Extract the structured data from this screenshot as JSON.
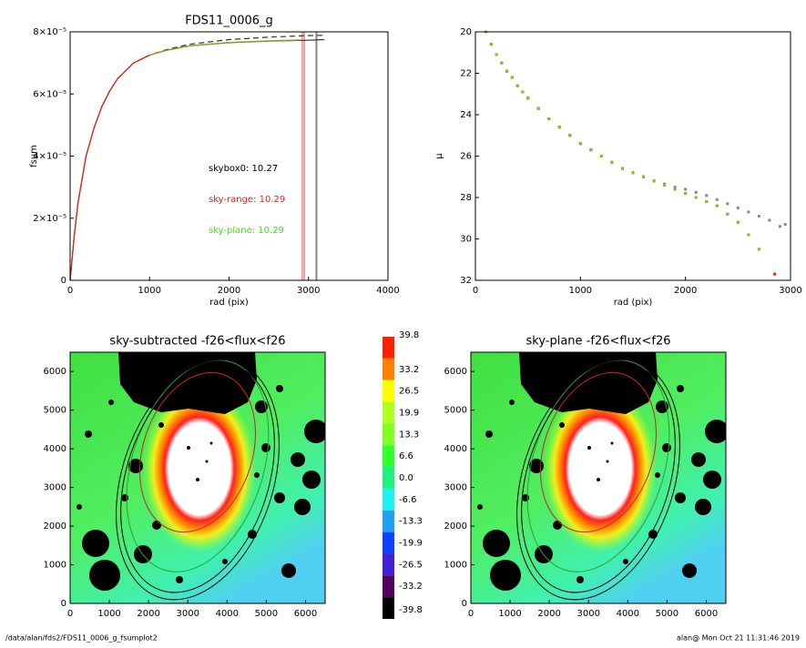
{
  "chart_data": [
    {
      "type": "line",
      "title": "FDS11_0006_g",
      "x_label": "rad (pix)",
      "y_label": "fsum",
      "xlim": [
        0,
        4000
      ],
      "xticks": [
        0,
        1000,
        2000,
        3000,
        4000
      ],
      "ylim": [
        0,
        8e-05
      ],
      "yticks": [
        0,
        {
          "value": 2e-05,
          "label": "2×10⁻⁵"
        },
        {
          "value": 4e-05,
          "label": "4×10⁻⁵"
        },
        {
          "value": 6e-05,
          "label": "6×10⁻⁵"
        },
        {
          "value": 8e-05,
          "label": "8×10⁻⁵"
        }
      ],
      "vlines": [
        {
          "value": 2920,
          "color": "#f0a0a0"
        },
        {
          "value": 2945,
          "color": "#f0a0a0"
        },
        {
          "value": 3100,
          "color": "#888888"
        }
      ],
      "series": [
        {
          "color": "#333333",
          "dash": false,
          "x": [
            0,
            50,
            100,
            200,
            300,
            400,
            500,
            600,
            800,
            1000,
            1200,
            1500,
            2000,
            2500,
            3000,
            3200
          ],
          "values": [
            0,
            1.4e-05,
            2.5e-05,
            4e-05,
            4.9e-05,
            5.6e-05,
            6.1e-05,
            6.5e-05,
            7e-05,
            7.25e-05,
            7.4e-05,
            7.55e-05,
            7.65e-05,
            7.7e-05,
            7.73e-05,
            7.75e-05
          ]
        },
        {
          "color": "#333333",
          "dash": true,
          "x": [
            0,
            50,
            100,
            200,
            300,
            400,
            500,
            600,
            800,
            1000,
            1200,
            1500,
            2000,
            2500,
            3000,
            3200
          ],
          "values": [
            0,
            1.4e-05,
            2.5e-05,
            4e-05,
            4.9e-05,
            5.6e-05,
            6.1e-05,
            6.5e-05,
            7e-05,
            7.25e-05,
            7.42e-05,
            7.6e-05,
            7.75e-05,
            7.83e-05,
            7.88e-05,
            7.89e-05
          ]
        },
        {
          "color": "#9aa020",
          "dash": false,
          "x": [
            0,
            50,
            100,
            200,
            300,
            400,
            500,
            600,
            800,
            1000,
            1200,
            1500,
            2000,
            2500,
            2900
          ],
          "values": [
            0,
            1.4e-05,
            2.5e-05,
            4e-05,
            4.9e-05,
            5.6e-05,
            6.1e-05,
            6.5e-05,
            7e-05,
            7.25e-05,
            7.4e-05,
            7.55e-05,
            7.66e-05,
            7.71e-05,
            7.74e-05
          ]
        },
        {
          "color": "#e02020",
          "dash": false,
          "x": [
            0,
            50,
            100,
            200,
            300,
            400,
            500,
            600,
            800,
            1000
          ],
          "values": [
            0,
            1.4e-05,
            2.5e-05,
            4e-05,
            4.9e-05,
            5.6e-05,
            6.1e-05,
            6.5e-05,
            7e-05,
            7.25e-05
          ]
        }
      ],
      "annotations": [
        {
          "text": "skybox0: 10.27",
          "color": "#000000"
        },
        {
          "text": "sky-range: 10.29",
          "color": "#e02020"
        },
        {
          "text": "sky-plane: 10.29",
          "color": "#40e020"
        }
      ]
    },
    {
      "type": "scatter",
      "x_label": "rad (pix)",
      "y_label": "μ",
      "xlim": [
        0,
        3000
      ],
      "xticks": [
        0,
        1000,
        2000,
        3000
      ],
      "ylim": [
        32,
        20
      ],
      "yticks": [
        20,
        22,
        24,
        26,
        28,
        30,
        32
      ],
      "series": [
        {
          "color": "#888888",
          "x": [
            100,
            150,
            200,
            250,
            300,
            350,
            400,
            450,
            500,
            600,
            700,
            800,
            900,
            1000,
            1100,
            1200,
            1300,
            1400,
            1500,
            1600,
            1700,
            1800,
            1900,
            2000,
            2100,
            2200,
            2300,
            2400,
            2500,
            2600,
            2700,
            2800,
            2900,
            2950
          ],
          "values": [
            20.0,
            20.6,
            21.1,
            21.5,
            21.9,
            22.2,
            22.6,
            22.9,
            23.2,
            23.7,
            24.2,
            24.6,
            25.0,
            25.4,
            25.7,
            26.0,
            26.3,
            26.6,
            26.8,
            27.0,
            27.2,
            27.35,
            27.5,
            27.6,
            27.75,
            27.9,
            28.1,
            28.3,
            28.5,
            28.7,
            28.9,
            29.1,
            29.4,
            29.3
          ]
        },
        {
          "color": "#e02020",
          "x": [
            100,
            150,
            200,
            250,
            300,
            350,
            400,
            450,
            500,
            600,
            700,
            800,
            900,
            1000,
            1100,
            1200,
            1300,
            1400,
            1500,
            1600,
            1700,
            1800,
            1900,
            2000,
            2100,
            2200,
            2300,
            2400,
            2500,
            2600,
            2700,
            2850
          ],
          "values": [
            20.0,
            20.6,
            21.1,
            21.5,
            21.9,
            22.2,
            22.6,
            22.9,
            23.2,
            23.7,
            24.2,
            24.6,
            25.0,
            25.4,
            25.7,
            26.0,
            26.3,
            26.6,
            26.8,
            27.0,
            27.2,
            27.4,
            27.6,
            27.8,
            28.0,
            28.2,
            28.4,
            28.8,
            29.2,
            29.8,
            30.5,
            31.7
          ]
        },
        {
          "color": "#70d020",
          "x": [
            100,
            150,
            200,
            250,
            300,
            350,
            400,
            450,
            500,
            600,
            700,
            800,
            900,
            1000,
            1100,
            1200,
            1300,
            1400,
            1500,
            1600,
            1700,
            1800,
            1900,
            2000,
            2100,
            2200,
            2300,
            2400,
            2500,
            2600,
            2700
          ],
          "values": [
            20.0,
            20.6,
            21.1,
            21.5,
            21.9,
            22.2,
            22.6,
            22.9,
            23.2,
            23.7,
            24.2,
            24.6,
            25.0,
            25.4,
            25.7,
            26.0,
            26.3,
            26.6,
            26.8,
            27.0,
            27.2,
            27.4,
            27.6,
            27.8,
            28.0,
            28.2,
            28.4,
            28.8,
            29.2,
            29.8,
            30.5
          ]
        }
      ]
    },
    {
      "type": "image",
      "title": "sky-subtracted -f26<flux<f26",
      "xlim": [
        0,
        6500
      ],
      "xticks": [
        0,
        1000,
        2000,
        3000,
        4000,
        5000,
        6000
      ],
      "ylim": [
        0,
        6500
      ],
      "yticks": [
        0,
        1000,
        2000,
        3000,
        4000,
        5000,
        6000
      ]
    },
    {
      "type": "colorbar",
      "levels": [
        39.8,
        33.2,
        26.5,
        19.9,
        13.3,
        6.6,
        {
          "value": 0,
          "label": "0.0"
        },
        -6.6,
        -13.3,
        -19.9,
        -26.5,
        -33.2,
        -39.8
      ],
      "colors": [
        "#ff2000",
        "#ff8000",
        "#ffff00",
        "#b0ff20",
        "#80ff20",
        "#30ff30",
        "#20f080",
        "#20f0f0",
        "#20a0f0",
        "#1040ff",
        "#4020d0",
        "#500060",
        "#000000"
      ]
    },
    {
      "type": "image",
      "title": "sky-plane -f26<flux<f26",
      "xlim": [
        0,
        6500
      ],
      "xticks": [
        0,
        1000,
        2000,
        3000,
        4000,
        5000,
        6000
      ],
      "ylim": [
        0,
        6500
      ],
      "yticks": [
        0,
        1000,
        2000,
        3000,
        4000,
        5000,
        6000
      ]
    }
  ],
  "footer": {
    "path": "/data/alan/fds2/FDS11_0006_g_fsumplot2",
    "stamp": "alan@  Mon Oct 21 11:31:46 2019"
  }
}
